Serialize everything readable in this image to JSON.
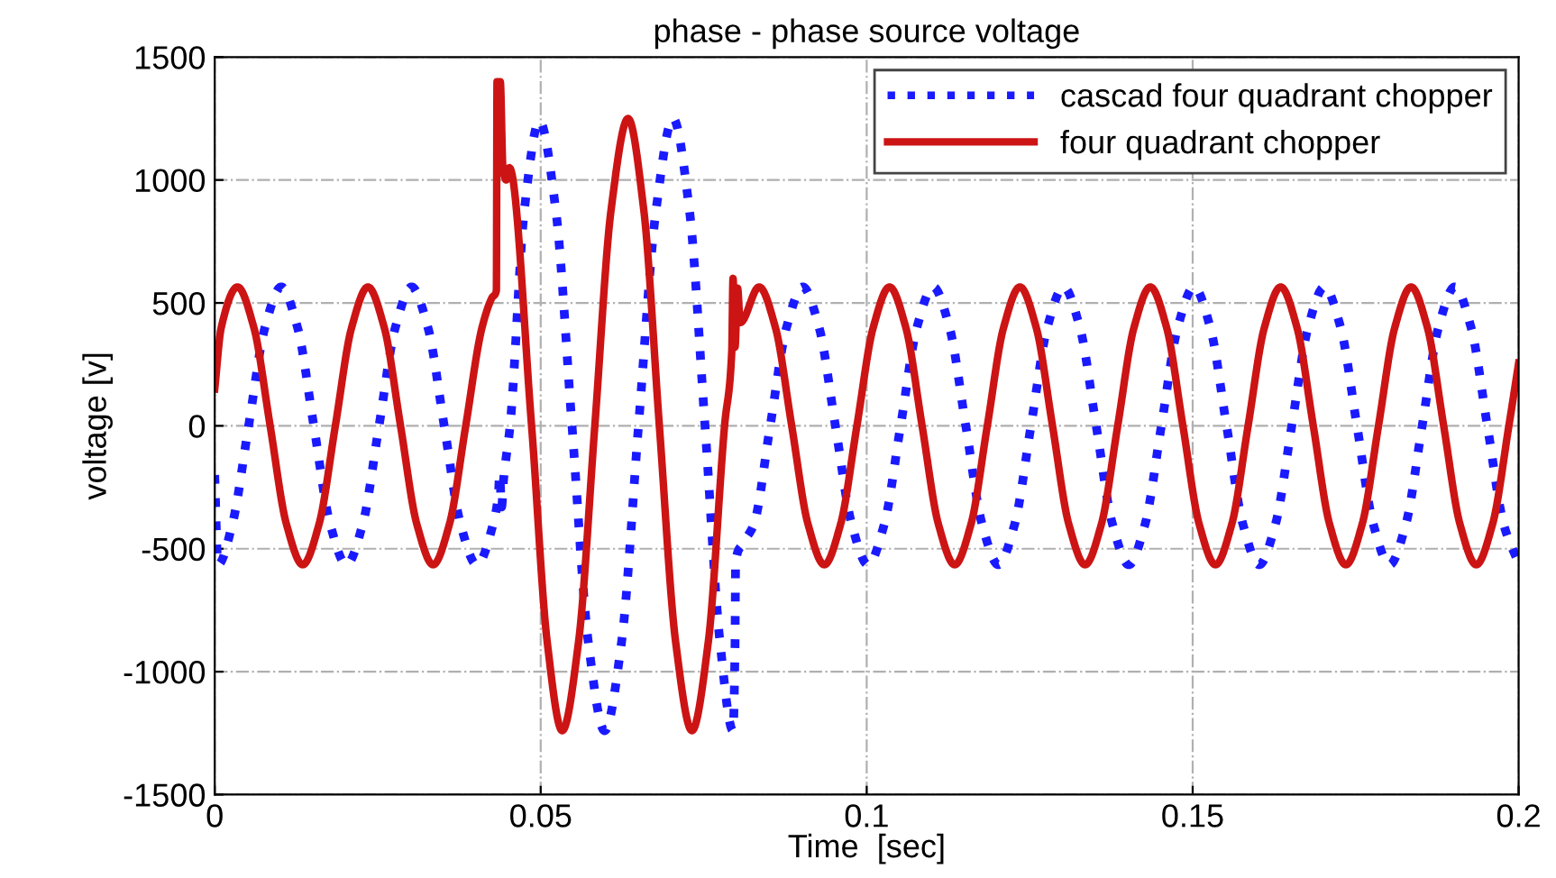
{
  "chart_data": {
    "type": "line",
    "title": "phase - phase source voltage",
    "xlabel": "Time  [sec]",
    "ylabel": "voltage [v]",
    "xlim": [
      0,
      0.2
    ],
    "xticks": [
      0,
      0.05,
      0.1,
      0.15,
      0.2
    ],
    "ylim": [
      -1500,
      1500
    ],
    "yticks": [
      -1500,
      -1000,
      -500,
      0,
      500,
      1000,
      1500
    ],
    "grid": true,
    "legend": "top right",
    "series": [
      {
        "name": "cascad four quadrant chopper",
        "color": "#1a1aff",
        "line_style": "dotted",
        "x": [
          0,
          0.0005,
          0.0027,
          0.0052,
          0.0077,
          0.0102,
          0.0127,
          0.0152,
          0.0177,
          0.0202,
          0.0227,
          0.0252,
          0.0277,
          0.0302,
          0.0327,
          0.0352,
          0.0377,
          0.0402,
          0.0427,
          0.0435,
          0.0437,
          0.044,
          0.0443,
          0.0453,
          0.0475,
          0.0498,
          0.0523,
          0.0548,
          0.0573,
          0.0598,
          0.0624,
          0.065,
          0.0677,
          0.0703,
          0.0728,
          0.0752,
          0.0775,
          0.0795,
          0.0798,
          0.0799,
          0.081,
          0.0827,
          0.0852,
          0.0877,
          0.0902,
          0.0927,
          0.0952,
          0.0977,
          0.1002,
          0.1027,
          0.1052,
          0.1077,
          0.1102,
          0.1127,
          0.1152,
          0.1177,
          0.1202,
          0.1227,
          0.1252,
          0.1277,
          0.1302,
          0.1327,
          0.1352,
          0.1377,
          0.1402,
          0.1427,
          0.1452,
          0.1477,
          0.1502,
          0.1527,
          0.1552,
          0.1577,
          0.1602,
          0.1627,
          0.1652,
          0.1677,
          0.1702,
          0.1727,
          0.1752,
          0.1777,
          0.1802,
          0.1827,
          0.1852,
          0.1877,
          0.1902,
          0.1927,
          0.1952,
          0.1977,
          0.2
        ],
        "values": [
          -200,
          -565,
          -400,
          0,
          400,
          565,
          400,
          0,
          -400,
          -565,
          -400,
          0,
          400,
          565,
          400,
          0,
          -400,
          -565,
          -400,
          -280,
          -200,
          -330,
          -220,
          0,
          880,
          1240,
          880,
          0,
          -880,
          -1240,
          -880,
          0,
          880,
          1250,
          880,
          0,
          -880,
          -1240,
          -900,
          -553,
          -480,
          -400,
          0,
          400,
          565,
          400,
          0,
          -400,
          -565,
          -400,
          0,
          400,
          565,
          400,
          0,
          -400,
          -565,
          -400,
          0,
          400,
          565,
          400,
          0,
          -400,
          -565,
          -400,
          0,
          400,
          565,
          400,
          0,
          -400,
          -565,
          -400,
          0,
          400,
          565,
          400,
          0,
          -400,
          -565,
          -400,
          0,
          400,
          565,
          400,
          0,
          -400,
          -560
        ]
      },
      {
        "name": "four quadrant chopper",
        "color": "#cc1414",
        "line_style": "solid",
        "x": [
          0,
          0.001,
          0.0035,
          0.006,
          0.0085,
          0.011,
          0.0135,
          0.016,
          0.0185,
          0.021,
          0.0235,
          0.026,
          0.0285,
          0.031,
          0.0335,
          0.036,
          0.0385,
          0.041,
          0.0425,
          0.0432,
          0.0433,
          0.0438,
          0.0442,
          0.0447,
          0.0452,
          0.0486,
          0.051,
          0.0533,
          0.0558,
          0.0583,
          0.0608,
          0.0634,
          0.0658,
          0.0682,
          0.0707,
          0.0732,
          0.0757,
          0.0782,
          0.0793,
          0.0795,
          0.0798,
          0.0802,
          0.0806,
          0.0835,
          0.086,
          0.0885,
          0.091,
          0.0935,
          0.096,
          0.0985,
          0.101,
          0.1035,
          0.106,
          0.1085,
          0.111,
          0.1135,
          0.116,
          0.1185,
          0.121,
          0.1235,
          0.126,
          0.1285,
          0.131,
          0.1335,
          0.136,
          0.1385,
          0.141,
          0.1435,
          0.146,
          0.1485,
          0.151,
          0.1535,
          0.156,
          0.1585,
          0.161,
          0.1635,
          0.166,
          0.1685,
          0.171,
          0.1735,
          0.176,
          0.1785,
          0.181,
          0.1835,
          0.186,
          0.1885,
          0.191,
          0.1935,
          0.196,
          0.1985,
          0.2
        ],
        "values": [
          150,
          400,
          565,
          400,
          0,
          -400,
          -565,
          -400,
          0,
          400,
          565,
          400,
          0,
          -400,
          -565,
          -400,
          0,
          400,
          520,
          550,
          1400,
          1400,
          1050,
          1000,
          1050,
          0,
          -880,
          -1240,
          -880,
          0,
          880,
          1250,
          880,
          0,
          -880,
          -1240,
          -880,
          0,
          300,
          600,
          320,
          560,
          420,
          565,
          400,
          0,
          -400,
          -565,
          -400,
          0,
          400,
          565,
          400,
          0,
          -400,
          -565,
          -400,
          0,
          400,
          565,
          400,
          0,
          -400,
          -565,
          -400,
          0,
          400,
          565,
          400,
          0,
          -400,
          -565,
          -400,
          0,
          400,
          565,
          400,
          0,
          -400,
          -565,
          -400,
          0,
          400,
          565,
          400,
          0,
          -400,
          -565,
          -400,
          0,
          255
        ]
      }
    ]
  }
}
